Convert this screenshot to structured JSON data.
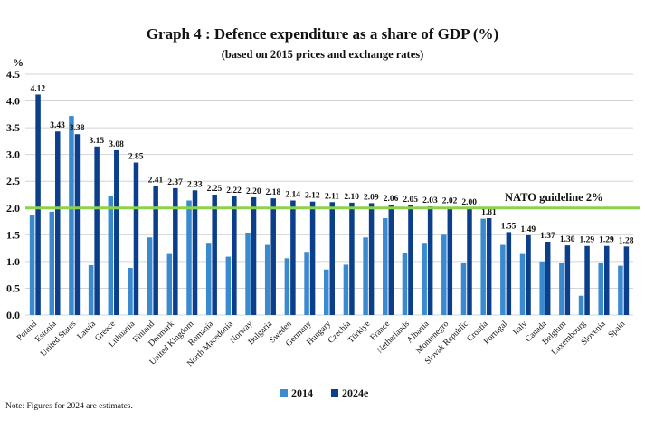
{
  "chart_data": {
    "type": "bar",
    "title": "Graph 4 : Defence expenditure as a share of GDP (%)",
    "subtitle": "(based on 2015 prices and exchange rates)",
    "ylabel": "%",
    "ylim": [
      0,
      4.5
    ],
    "yticks": [
      "0.0",
      "0.5",
      "1.0",
      "1.5",
      "2.0",
      "2.5",
      "3.0",
      "3.5",
      "4.0",
      "4.5"
    ],
    "grid": true,
    "legend_position": "bottom",
    "categories": [
      "Poland",
      "Estonia",
      "United States",
      "Latvia",
      "Greece",
      "Lithuania",
      "Finland",
      "Denmark",
      "United Kingdom",
      "Romania",
      "North Macedonia",
      "Norway",
      "Bulgaria",
      "Sweden",
      "Germany",
      "Hungary",
      "Czechia",
      "Türkiye",
      "France",
      "Netherlands",
      "Albania",
      "Montenegro",
      "Slovak Republic",
      "Croatia",
      "Portugal",
      "Italy",
      "Canada",
      "Belgium",
      "Luxembourg",
      "Slovenia",
      "Spain"
    ],
    "series": [
      {
        "name": "2014",
        "color": "#3a8ad0",
        "values": [
          1.87,
          1.93,
          3.72,
          0.93,
          2.22,
          0.88,
          1.45,
          1.14,
          2.14,
          1.35,
          1.09,
          1.54,
          1.31,
          1.06,
          1.18,
          0.85,
          0.94,
          1.45,
          1.81,
          1.15,
          1.35,
          1.5,
          0.98,
          1.8,
          1.31,
          1.14,
          1.0,
          0.97,
          0.36,
          0.97,
          0.92
        ]
      },
      {
        "name": "2024e",
        "color": "#0b3f8c",
        "values": [
          4.12,
          3.43,
          3.38,
          3.15,
          3.08,
          2.85,
          2.41,
          2.37,
          2.33,
          2.25,
          2.22,
          2.2,
          2.18,
          2.14,
          2.12,
          2.11,
          2.1,
          2.09,
          2.06,
          2.05,
          2.03,
          2.02,
          2.0,
          1.81,
          1.55,
          1.49,
          1.37,
          1.3,
          1.29,
          1.29,
          1.28
        ],
        "data_labels": [
          "4.12",
          "3.43",
          "3.38",
          "3.15",
          "3.08",
          "2.85",
          "2.41",
          "2.37",
          "2.33",
          "2.25",
          "2.22",
          "2.20",
          "2.18",
          "2.14",
          "2.12",
          "2.11",
          "2.10",
          "2.09",
          "2.06",
          "2.05",
          "2.03",
          "2.02",
          "2.00",
          "1.81",
          "1.55",
          "1.49",
          "1.37",
          "1.30",
          "1.29",
          "1.29",
          "1.28"
        ]
      }
    ],
    "reference_line": {
      "value": 2.0,
      "label": "NATO guideline 2%",
      "color": "#8cd24a"
    },
    "note": "Note: Figures for 2024 are estimates."
  }
}
